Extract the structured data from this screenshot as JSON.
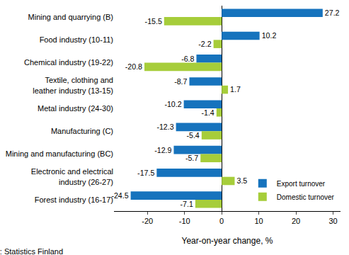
{
  "chart_data": {
    "type": "bar",
    "orientation": "horizontal",
    "categories": [
      "Mining and quarrying (B)",
      "Food industry (10-11)",
      "Chemical industry (19-22)",
      "Textile, clothing and leather industry (13-15)",
      "Metal industry (24-30)",
      "Manufacturing (C)",
      "Mining and manufacturing (BC)",
      "Electronic and electrical industry (26-27)",
      "Forest industry (16-17)"
    ],
    "series": [
      {
        "name": "Export turnover",
        "color": "#1673bd",
        "values": [
          27.2,
          10.2,
          -6.8,
          -8.7,
          -10.2,
          -12.3,
          -12.9,
          -17.5,
          -24.5
        ]
      },
      {
        "name": "Domestic turnover",
        "color": "#a6cd3a",
        "values": [
          -15.5,
          -2.2,
          -20.8,
          1.7,
          -1.4,
          -5.4,
          -5.7,
          3.5,
          -7.1
        ]
      }
    ],
    "xlabel": "Year-on-year change, %",
    "xlim": [
      -29,
      32
    ],
    "xticks": [
      -20,
      -10,
      0,
      10,
      20,
      30
    ],
    "data_labels": true,
    "legend": "lower right",
    "grid": false,
    "annotations": [
      "Source: Statistics Finland"
    ]
  }
}
